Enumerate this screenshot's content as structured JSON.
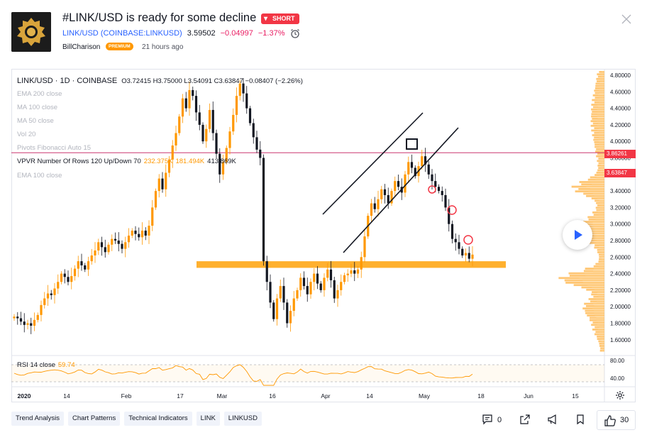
{
  "header": {
    "title": "#LINK/USD is ready for some decline",
    "badge": "SHORT",
    "symbol": "LINK/USD",
    "exchange": "(COINBASE:LINKUSD)",
    "price": "3.59502",
    "change": "−0.04997",
    "change_pct": "−1.37%",
    "author": "BillCharison",
    "author_badge": "PREMIUM",
    "time_ago": "21 hours ago"
  },
  "legend": {
    "symbol_line": "LINK/USD · 1D · COINBASE",
    "ohlc": "O3.72415  H3.75000  L3.54091  C3.63847  −0.08407 (−2.26%)",
    "indicators": [
      "EMA 200 close",
      "MA 100 close",
      "MA 50 close",
      "Vol 20",
      "Pivots Fibonacci Auto 15"
    ],
    "vpvr_label": "VPVR Number Of Rows 120 Up/Down 70",
    "vpvr_v1": "232.375K",
    "vpvr_v2": "181.494K",
    "vpvr_v3": "413.869K",
    "ema_extra": "EMA 100 close"
  },
  "rsi": {
    "label": "RSI 14 close",
    "value": "59.74",
    "axis": [
      "80.00",
      "40.00"
    ]
  },
  "price_tags": {
    "pivot": "3.86261",
    "last": "3.63847"
  },
  "colors": {
    "up": "#ff9800",
    "down": "#131722",
    "accent": "#2962ff",
    "short": "#f23645",
    "zone": "#ffb02e"
  },
  "chart_data": {
    "type": "candlestick",
    "y_axis_labels": [
      "4.80000",
      "4.60000",
      "4.40000",
      "4.20000",
      "4.00000",
      "3.80000",
      "3.60000",
      "3.40000",
      "3.20000",
      "3.00000",
      "2.80000",
      "2.60000",
      "2.40000",
      "2.20000",
      "2.00000",
      "1.80000",
      "1.60000"
    ],
    "x_axis_labels": [
      "2020",
      "14",
      "Feb",
      "17",
      "Mar",
      "16",
      "Apr",
      "14",
      "May",
      "18",
      "Jun",
      "15"
    ],
    "support_zone": [
      2.47,
      2.55
    ],
    "horizontal_line": 3.86261,
    "last_price": 3.63847
  },
  "tags": [
    "Trend Analysis",
    "Chart Patterns",
    "Technical Indicators",
    "LINK",
    "LINKUSD"
  ],
  "footer": {
    "comments": "0",
    "boosts": "30"
  }
}
